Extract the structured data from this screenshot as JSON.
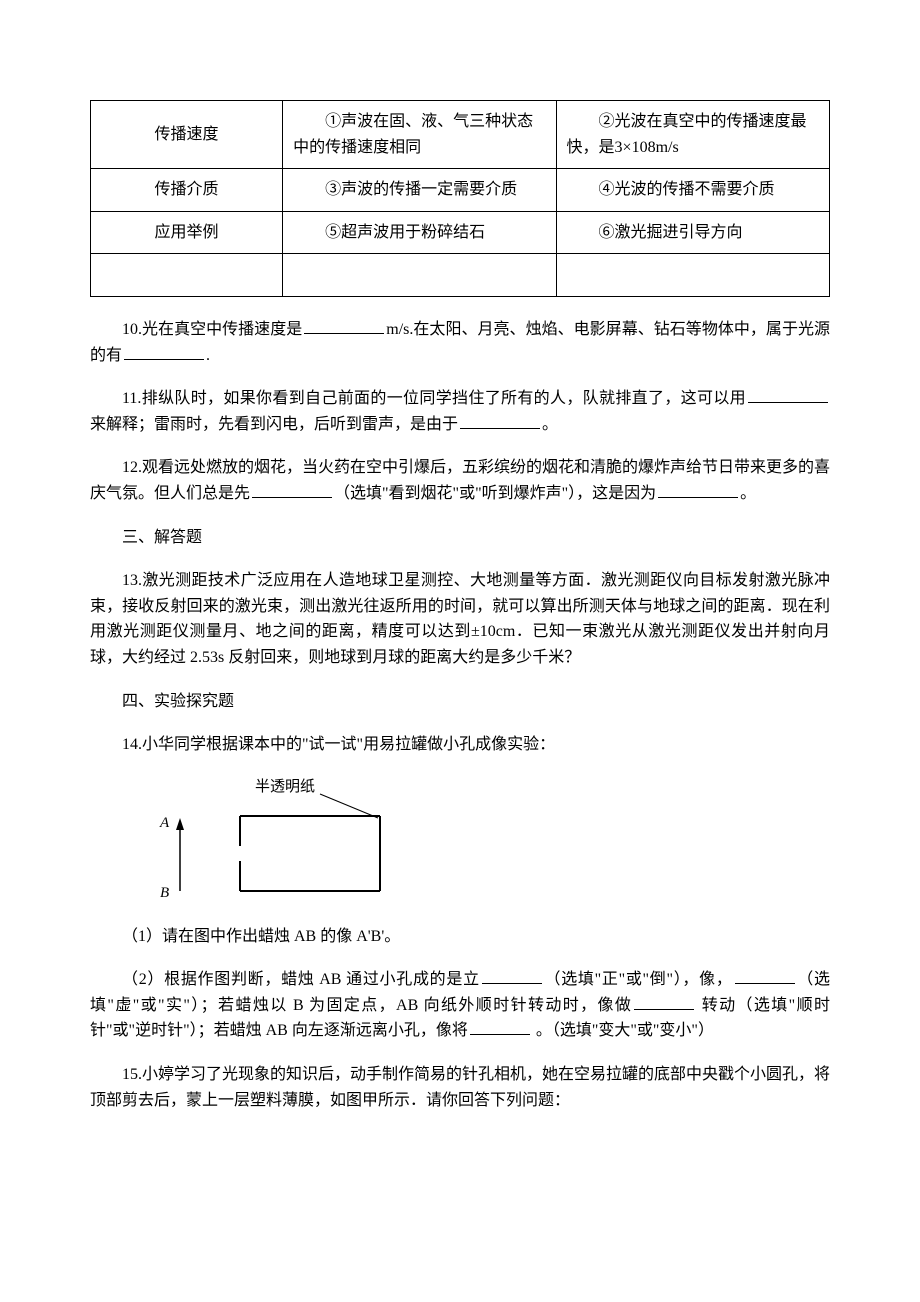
{
  "table": {
    "rows": [
      {
        "label": "传播速度",
        "sound": "　　①声波在固、液、气三种状态中的传播速度相同",
        "light": "　　②光波在真空中的传播速度最快，是3×108m/s"
      },
      {
        "label": "传播介质",
        "sound": "　　③声波的传播一定需要介质",
        "light": "　　④光波的传播不需要介质"
      },
      {
        "label": "应用举例",
        "sound": "　　⑤超声波用于粉碎结石",
        "light": "　　⑥激光掘进引导方向"
      },
      {
        "label": "",
        "sound": "",
        "light": ""
      }
    ]
  },
  "q10": {
    "part1": "10.光在真空中传播速度是",
    "part2": "m/s.在太阳、月亮、烛焰、电影屏幕、钻石等物体中，属于光源的有",
    "part3": "."
  },
  "q11": {
    "part1": "11.排纵队时，如果你看到自己前面的一位同学挡住了所有的人，队就排直了，这可以用",
    "part2": "来解释；雷雨时，先看到闪电，后听到雷声，是由于",
    "part3": "。"
  },
  "q12": {
    "part1": "12.观看远处燃放的烟花，当火药在空中引爆后，五彩缤纷的烟花和清脆的爆炸声给节日带来更多的喜庆气氛。但人们总是先",
    "part2": "（选填\"看到烟花\"或\"听到爆炸声\"），这是因为",
    "part3": "。"
  },
  "section3": "三、解答题",
  "q13": "13.激光测距技术广泛应用在人造地球卫星测控、大地测量等方面．激光测距仪向目标发射激光脉冲束，接收反射回来的激光束，测出激光往返所用的时间，就可以算出所测天体与地球之间的距离．现在利用激光测距仪测量月、地之间的距离，精度可以达到±10cm．已知一束激光从激光测距仪发出并射向月球，大约经过 2.53s 反射回来，则地球到月球的距离大约是多少千米？",
  "section4": "四、实验探究题",
  "q14_intro": "14.小华同学根据课本中的\"试一试\"用易拉罐做小孔成像实验：",
  "diagram": {
    "label_paper": "半透明纸",
    "label_A": "A",
    "label_B": "B"
  },
  "q14_1": "（1）请在图中作出蜡烛 AB 的像 A'B'。",
  "q14_2": {
    "part1": "（2）根据作图判断，蜡烛 AB 通过小孔成的是立",
    "part2": "（选填\"正\"或\"倒\"），像，",
    "part3": "（选填\"虚\"或\"实\"）；若蜡烛以 B 为固定点，AB 向纸外顺时针转动时，像做",
    "part4": " 转动（选填\"顺时针\"或\"逆时针\"）；若蜡烛 AB 向左逐渐远离小孔，像将",
    "part5": " 。（选填\"变大\"或\"变小\"）"
  },
  "q15": "15.小婷学习了光现象的知识后，动手制作简易的针孔相机，她在空易拉罐的底部中央戳个小圆孔，将顶部剪去后，蒙上一层塑料薄膜，如图甲所示．请你回答下列问题："
}
